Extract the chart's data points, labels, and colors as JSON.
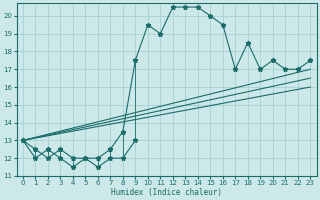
{
  "x_main": [
    0,
    1,
    2,
    3,
    4,
    5,
    6,
    7,
    8,
    9,
    10,
    11,
    12,
    13,
    14,
    15,
    16,
    17,
    18,
    19,
    20,
    21,
    22,
    23
  ],
  "y_main": [
    13,
    12.5,
    12,
    12.5,
    12,
    12,
    12,
    12.5,
    13.5,
    17.5,
    19.5,
    19,
    20.5,
    20.5,
    20.5,
    20,
    19.5,
    17,
    18.5,
    17,
    17.5,
    17,
    17,
    17.5
  ],
  "x_low": [
    0,
    1,
    2,
    3,
    4,
    5,
    6,
    7,
    8,
    9
  ],
  "y_low": [
    13,
    12,
    12.5,
    12,
    11.5,
    12,
    11.5,
    12,
    12,
    13
  ],
  "trend1_x": [
    0,
    23
  ],
  "trend1_y": [
    13,
    17.0
  ],
  "trend2_x": [
    0,
    23
  ],
  "trend2_y": [
    13,
    16.0
  ],
  "trend3_x": [
    0,
    23
  ],
  "trend3_y": [
    13,
    16.5
  ],
  "xlim": [
    -0.5,
    23.5
  ],
  "ylim": [
    11,
    20.7
  ],
  "yticks": [
    11,
    12,
    13,
    14,
    15,
    16,
    17,
    18,
    19,
    20
  ],
  "xticks": [
    0,
    1,
    2,
    3,
    4,
    5,
    6,
    7,
    8,
    9,
    10,
    11,
    12,
    13,
    14,
    15,
    16,
    17,
    18,
    19,
    20,
    21,
    22,
    23
  ],
  "xlabel": "Humidex (Indice chaleur)",
  "color": "#1b6b6b",
  "bg_color": "#cce8e8",
  "grid_color": "#aad4d4"
}
